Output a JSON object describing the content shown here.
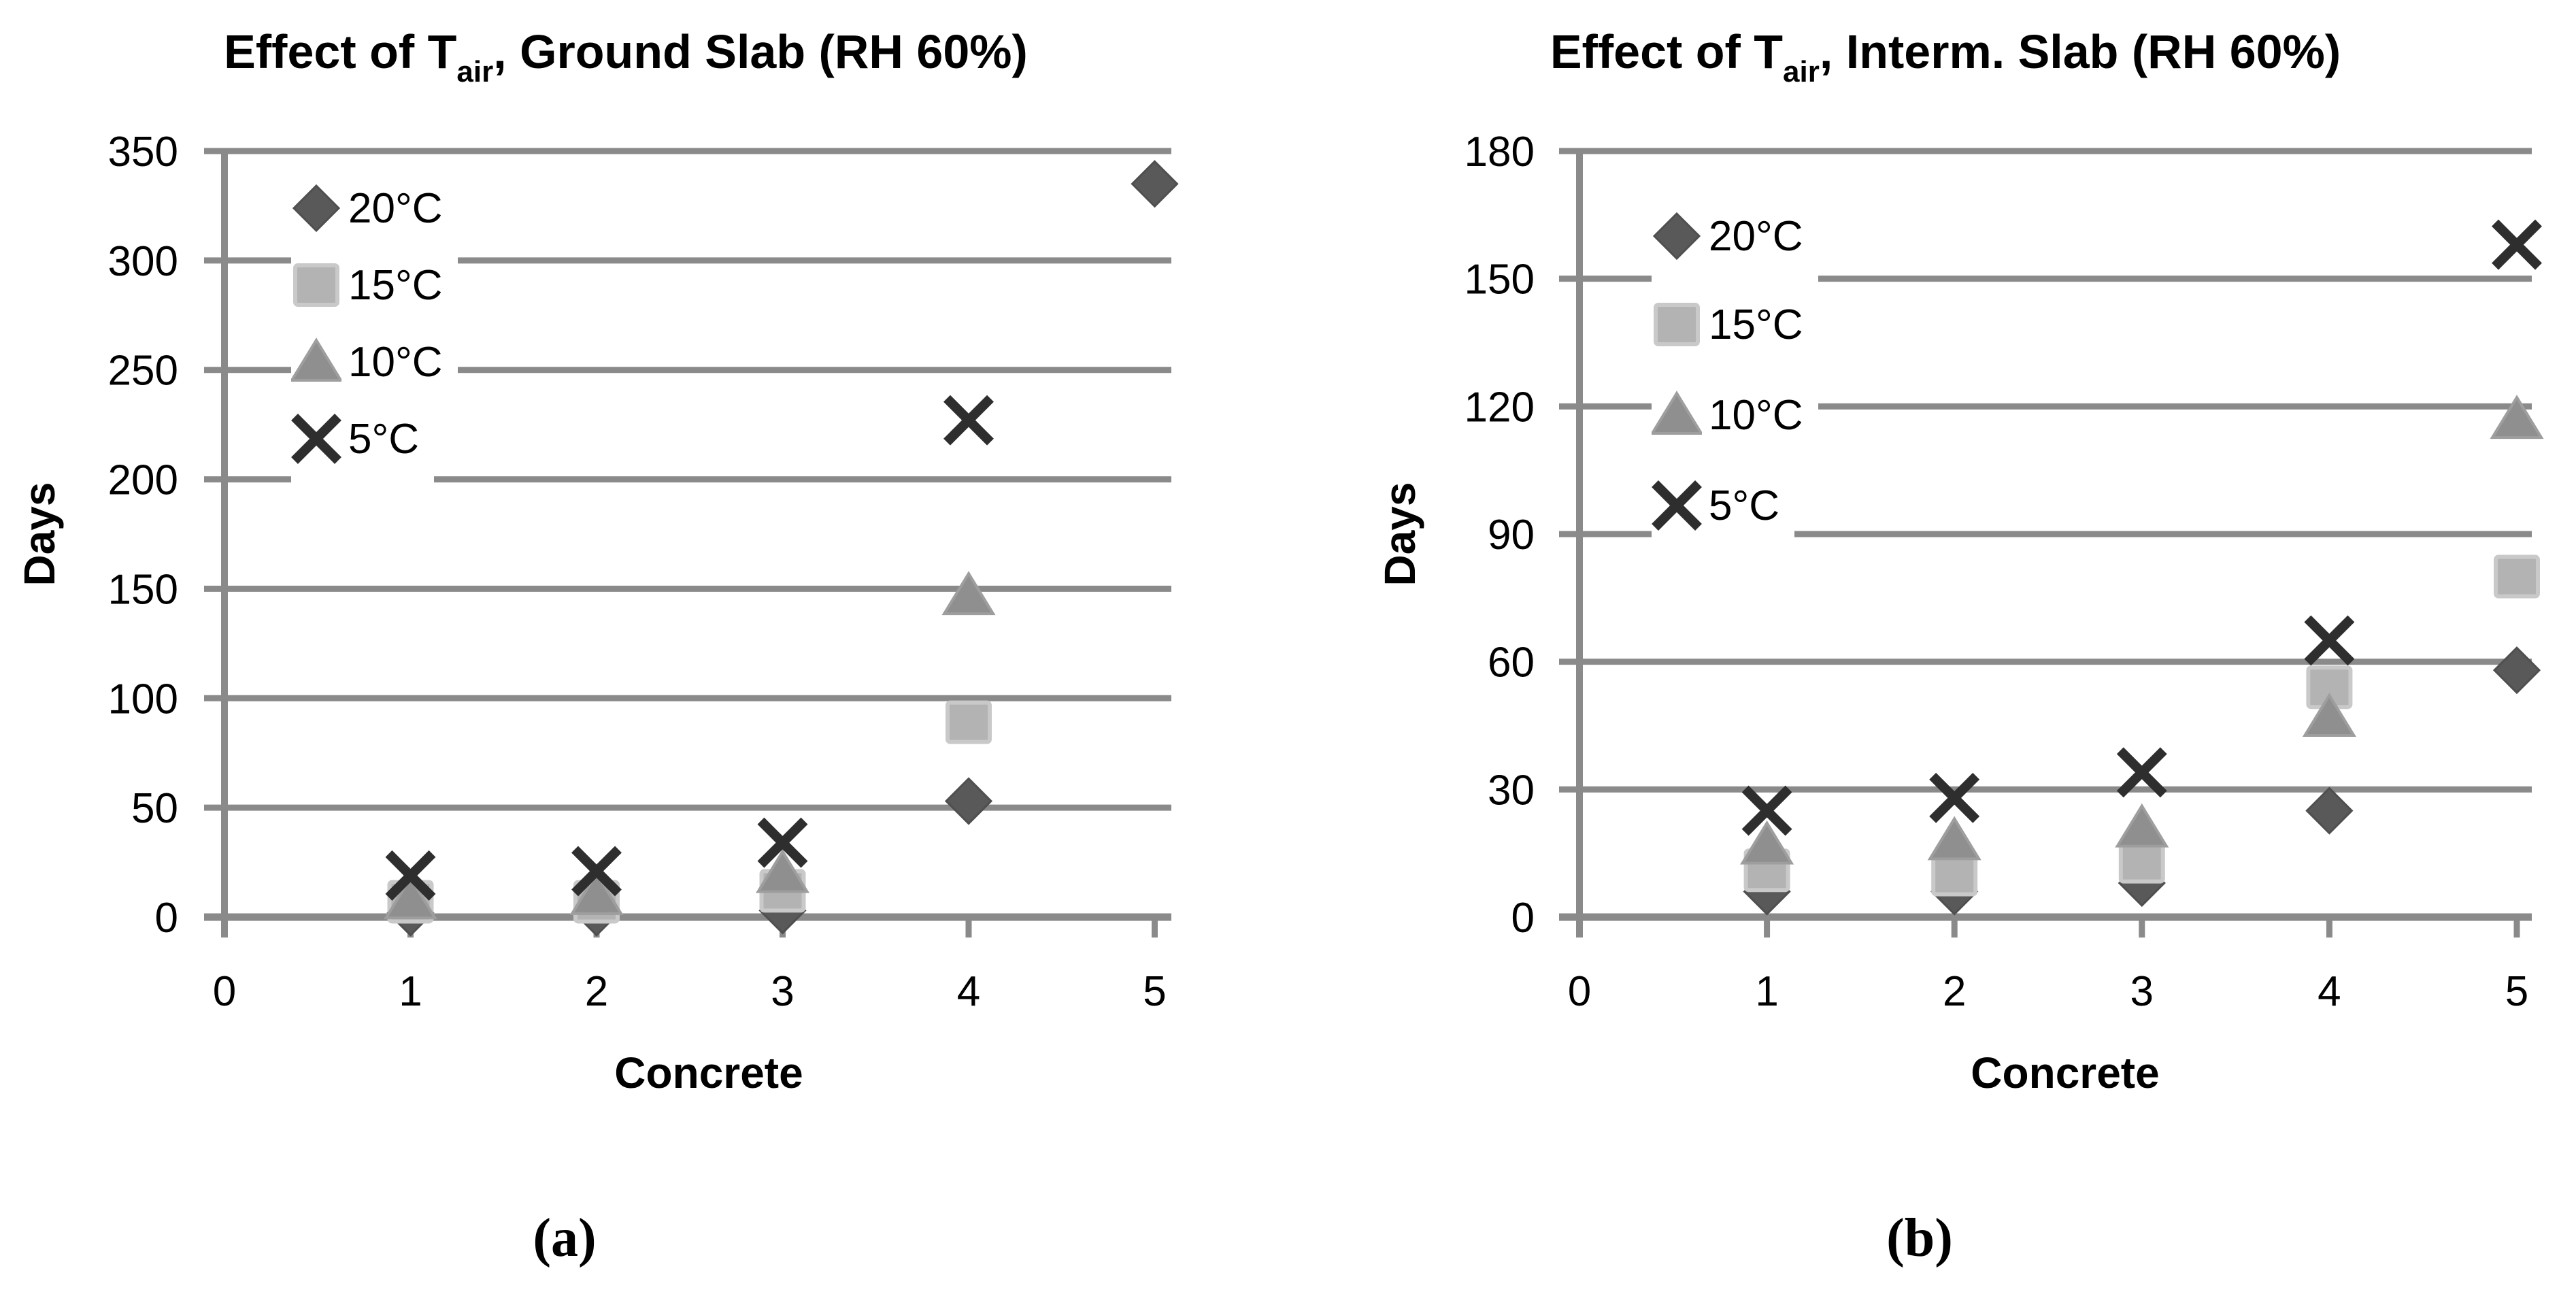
{
  "figure_captions": [
    "(a)",
    "(b)"
  ],
  "chart_data": [
    {
      "type": "scatter",
      "title_parts": {
        "prefix": "Effect of T",
        "sub": "air",
        "suffix": ", Ground Slab (RH 60%)"
      },
      "title_plain": "Effect of Tair, Ground Slab (RH 60%)",
      "xlabel": "Concrete",
      "ylabel": "Days",
      "caption": "(a)",
      "xlim": [
        0,
        5
      ],
      "ylim": [
        0,
        350
      ],
      "x_ticks": [
        0,
        1,
        2,
        3,
        4,
        5
      ],
      "y_ticks": [
        0,
        50,
        100,
        150,
        200,
        250,
        300,
        350
      ],
      "grid": "horizontal",
      "legend_position": "upper-left-inside",
      "x": [
        1,
        2,
        3,
        4,
        5
      ],
      "series": [
        {
          "name": "20°C",
          "marker": "diamond",
          "color": "#595959",
          "values": [
            2,
            2,
            3,
            53,
            335
          ]
        },
        {
          "name": "15°C",
          "marker": "square",
          "color": "#b3b3b3",
          "values": [
            7,
            7,
            12,
            89,
            null
          ]
        },
        {
          "name": "10°C",
          "marker": "triangle",
          "color": "#8f8f8f",
          "values": [
            8,
            10,
            20,
            147,
            null
          ]
        },
        {
          "name": "5°C",
          "marker": "x",
          "color": "#2e2e2e",
          "values": [
            19,
            21,
            34,
            227,
            null
          ]
        }
      ],
      "gridline_color": "#8a8a8a",
      "axis_color": "#8a8a8a"
    },
    {
      "type": "scatter",
      "title_parts": {
        "prefix": "Effect of T",
        "sub": "air",
        "suffix": ", Interm. Slab (RH 60%)"
      },
      "title_plain": "Effect of Tair, Interm. Slab (RH 60%)",
      "xlabel": "Concrete",
      "ylabel": "Days",
      "caption": "(b)",
      "xlim": [
        0,
        5
      ],
      "ylim": [
        0,
        180
      ],
      "x_ticks": [
        0,
        1,
        2,
        3,
        4,
        5
      ],
      "y_ticks": [
        0,
        30,
        60,
        90,
        120,
        150,
        180
      ],
      "grid": "horizontal",
      "legend_position": "upper-left-inside",
      "x": [
        1,
        2,
        3,
        4,
        5
      ],
      "series": [
        {
          "name": "20°C",
          "marker": "diamond",
          "color": "#595959",
          "values": [
            6,
            6,
            8,
            25,
            58
          ]
        },
        {
          "name": "15°C",
          "marker": "square",
          "color": "#b3b3b3",
          "values": [
            11,
            10,
            13,
            54,
            80
          ]
        },
        {
          "name": "10°C",
          "marker": "triangle",
          "color": "#8f8f8f",
          "values": [
            17,
            18,
            21,
            47,
            117
          ]
        },
        {
          "name": "5°C",
          "marker": "x",
          "color": "#2e2e2e",
          "values": [
            25,
            28,
            34,
            65,
            158
          ]
        }
      ],
      "gridline_color": "#8a8a8a",
      "axis_color": "#8a8a8a"
    }
  ]
}
